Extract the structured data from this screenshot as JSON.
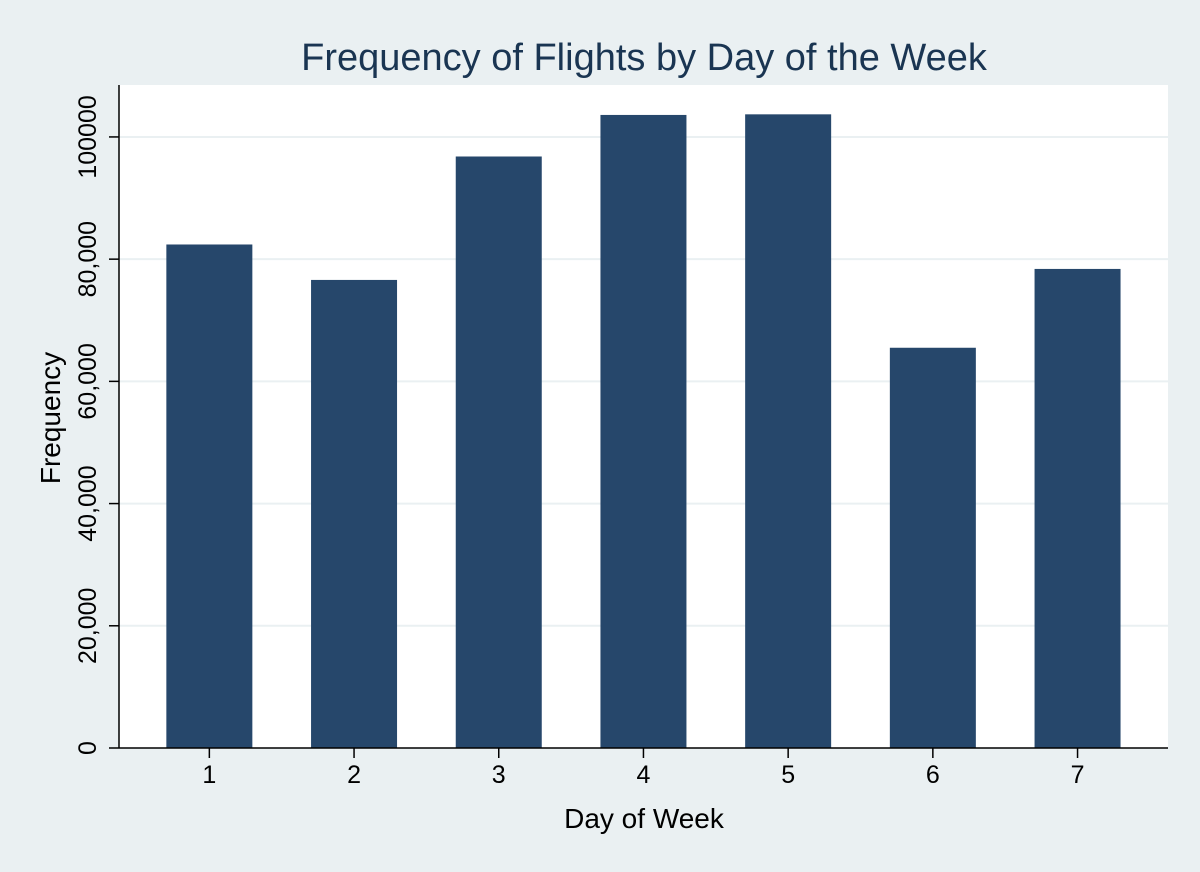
{
  "chart_data": {
    "type": "bar",
    "title": "Frequency of Flights by Day of the Week",
    "xlabel": "Day of Week",
    "ylabel": "Frequency",
    "categories": [
      "1",
      "2",
      "3",
      "4",
      "5",
      "6",
      "7"
    ],
    "values": [
      82400,
      76600,
      96800,
      103600,
      103700,
      65500,
      78400
    ],
    "ylim": [
      0,
      108500
    ],
    "yticks": [
      0,
      20000,
      40000,
      60000,
      80000,
      100000
    ],
    "ytick_labels": [
      "0",
      "20,000",
      "40,000",
      "60,000",
      "80,000",
      "100000"
    ],
    "grid": true,
    "legend": "none",
    "colors": {
      "bar": "#26476b",
      "background": "#eaf0f2",
      "plot_background": "#ffffff",
      "grid": "#eaf0f2",
      "title": "#1a3552"
    }
  }
}
